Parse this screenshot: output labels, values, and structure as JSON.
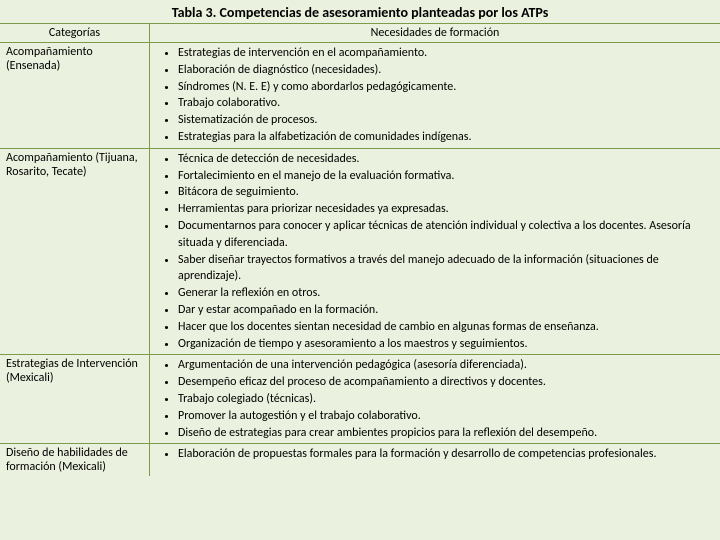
{
  "title": "Tabla 3. Competencias de asesoramiento planteadas por los ATPs",
  "headers": {
    "left": "Categorías",
    "right": "Necesidades de formación"
  },
  "rows": [
    {
      "category": "Acompañamiento (Ensenada)",
      "items": [
        "Estrategias de intervención en el acompañamiento.",
        "Elaboración de diagnóstico (necesidades).",
        "Síndromes (N. E. E) y como abordarlos pedagógicamente.",
        "Trabajo colaborativo.",
        "Sistematización de procesos.",
        "Estrategias para la alfabetización de comunidades indígenas."
      ]
    },
    {
      "category": "Acompañamiento (Tijuana, Rosarito, Tecate)",
      "items": [
        "Técnica de detección de necesidades.",
        "Fortalecimiento en el manejo de la evaluación formativa.",
        "Bitácora de seguimiento.",
        "Herramientas para priorizar necesidades ya expresadas.",
        "Documentarnos para conocer y aplicar técnicas de atención individual y colectiva a los docentes. Asesoría situada y diferenciada.",
        "Saber diseñar trayectos formativos a través del manejo adecuado de la información (situaciones de aprendizaje).",
        "Generar la reflexión en otros.",
        "Dar y estar acompañado en la formación.",
        "Hacer que los docentes sientan necesidad de cambio en algunas formas de enseñanza.",
        "Organización de tiempo y asesoramiento a los maestros y seguimientos."
      ]
    },
    {
      "category": "Estrategias de Intervención (Mexicali)",
      "items": [
        "Argumentación de una intervención  pedagógica (asesoría diferenciada).",
        "Desempeño eficaz del proceso de acompañamiento a directivos y docentes.",
        "Trabajo colegiado (técnicas).",
        "Promover la autogestión y el trabajo colaborativo.",
        "Diseño de estrategias para crear ambientes  propicios para la reflexión del desempeño."
      ]
    },
    {
      "category": "Diseño de habilidades de formación (Mexicali)",
      "items": [
        "Elaboración de propuestas formales para la formación y desarrollo de competencias profesionales."
      ]
    }
  ],
  "style": {
    "background": "#eaf1de",
    "border_color": "#7d9b4a",
    "title_fontsize": 14,
    "body_fontsize": 12
  }
}
